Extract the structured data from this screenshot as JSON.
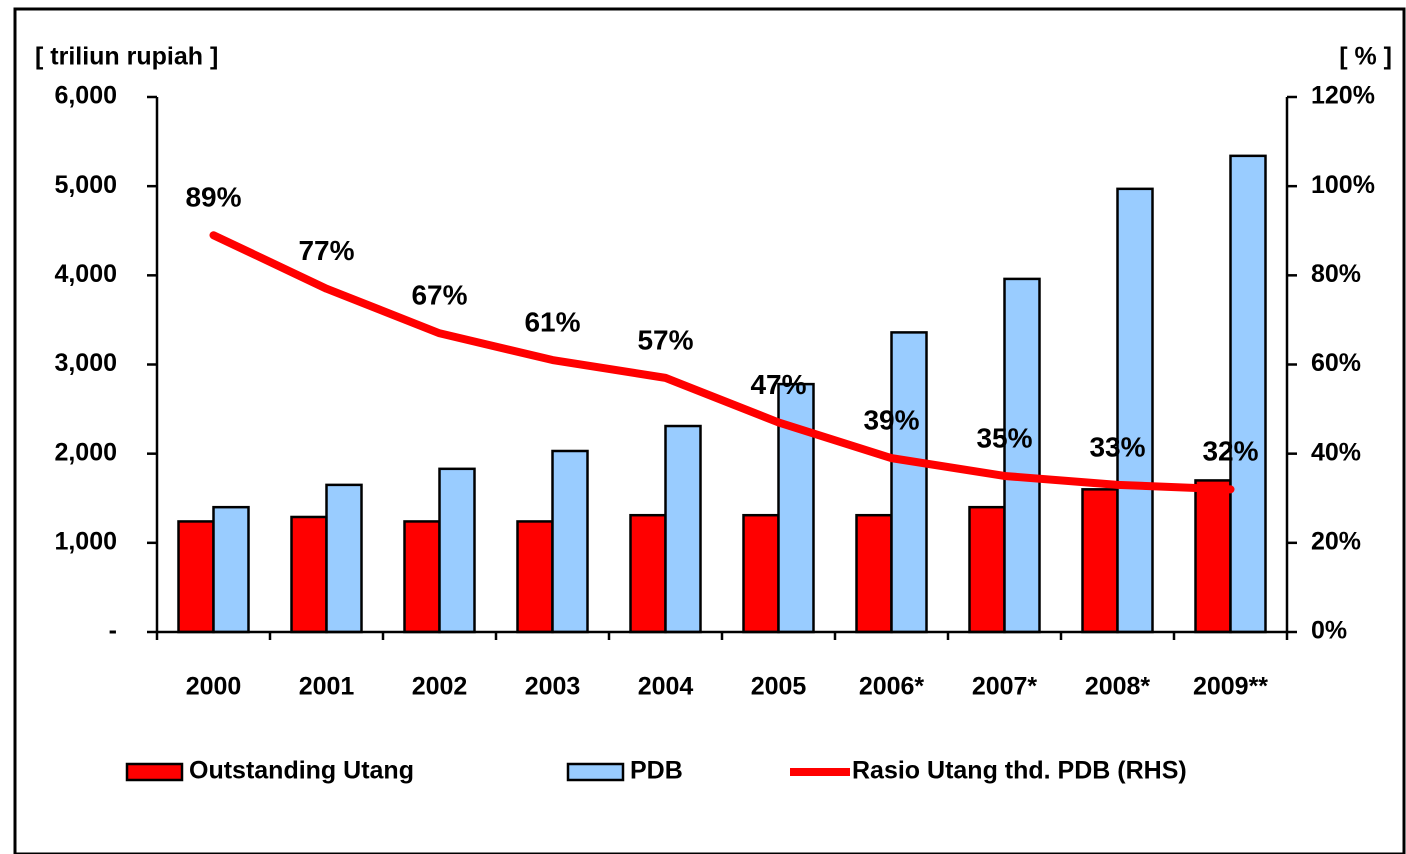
{
  "chart_data": {
    "type": "bar",
    "y_label": "[ triliun rupiah ]",
    "y2_label": "[ % ]",
    "categories": [
      "2000",
      "2001",
      "2002",
      "2003",
      "2004",
      "2005",
      "2006*",
      "2007*",
      "2008*",
      "2009**"
    ],
    "series": [
      {
        "name": "Outstanding Utang",
        "type": "bar",
        "color": "#ff0000",
        "values": [
          1240,
          1290,
          1240,
          1240,
          1310,
          1310,
          1310,
          1400,
          1600,
          1700
        ]
      },
      {
        "name": "PDB",
        "type": "bar",
        "color": "#99ccff",
        "values": [
          1400,
          1650,
          1830,
          2030,
          2310,
          2780,
          3360,
          3960,
          4970,
          5340
        ]
      },
      {
        "name": "Rasio Utang thd. PDB (RHS)",
        "type": "line",
        "axis": "y2",
        "color": "#ff0000",
        "values": [
          89,
          77,
          67,
          61,
          57,
          47,
          39,
          35,
          33,
          32
        ],
        "value_labels": [
          "89%",
          "77%",
          "67%",
          "61%",
          "57%",
          "47%",
          "39%",
          "35%",
          "33%",
          "32%"
        ]
      }
    ],
    "ylim": [
      0,
      6000
    ],
    "yticks": [
      {
        "value": 0,
        "label": "-"
      },
      {
        "value": 1000,
        "label": "1,000"
      },
      {
        "value": 2000,
        "label": "2,000"
      },
      {
        "value": 3000,
        "label": "3,000"
      },
      {
        "value": 4000,
        "label": "4,000"
      },
      {
        "value": 5000,
        "label": "5,000"
      },
      {
        "value": 6000,
        "label": "6,000"
      }
    ],
    "y2lim": [
      0,
      120
    ],
    "y2ticks": [
      {
        "value": 0,
        "label": "0%"
      },
      {
        "value": 20,
        "label": "20%"
      },
      {
        "value": 40,
        "label": "40%"
      },
      {
        "value": 60,
        "label": "60%"
      },
      {
        "value": 80,
        "label": "80%"
      },
      {
        "value": 100,
        "label": "100%"
      },
      {
        "value": 120,
        "label": "120%"
      }
    ],
    "legend": "bottom",
    "grid": false
  }
}
